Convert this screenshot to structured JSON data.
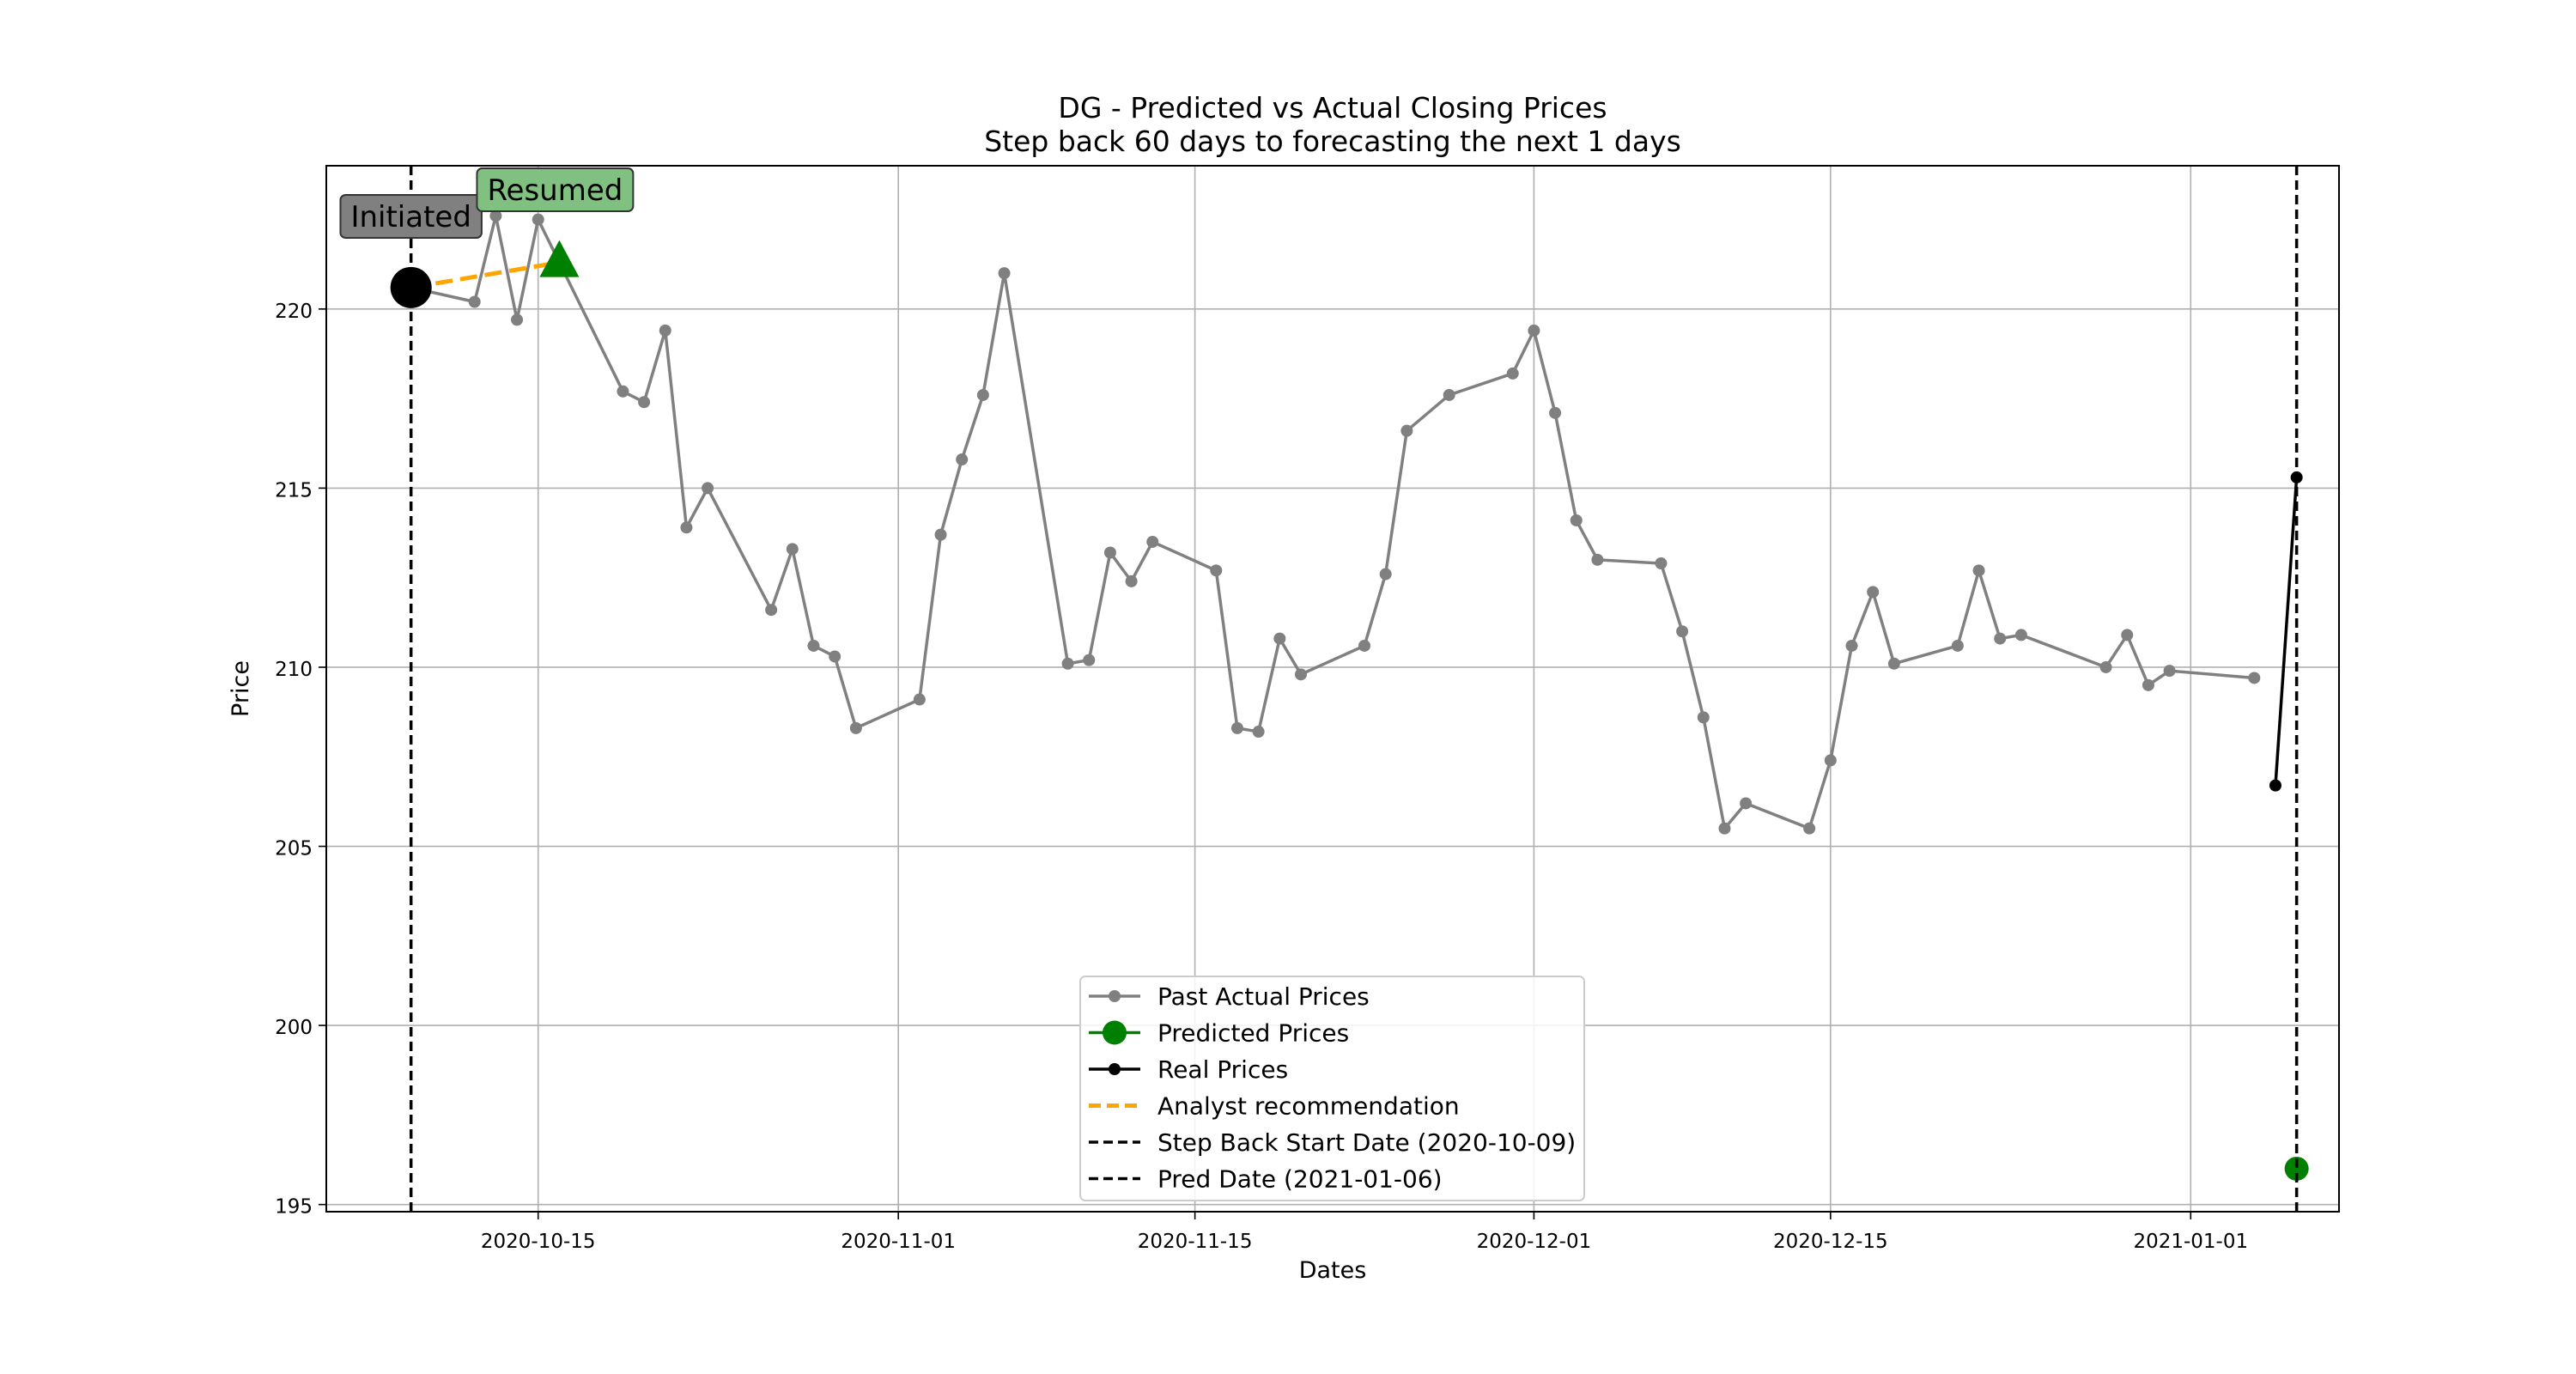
{
  "chart_data": {
    "type": "line",
    "title": "DG - Predicted vs Actual Closing Prices",
    "subtitle": "Step back 60 days to forecasting the next 1 days",
    "xlabel": "Dates",
    "ylabel": "Price",
    "xlim": [
      "2020-10-05",
      "2021-01-08"
    ],
    "ylim": [
      194.8,
      224.0
    ],
    "x_ticks": [
      "2020-10-15",
      "2020-11-01",
      "2020-11-15",
      "2020-12-01",
      "2020-12-15",
      "2021-01-01"
    ],
    "y_ticks": [
      195,
      200,
      205,
      210,
      215,
      220
    ],
    "grid": true,
    "legend_position": "lower center",
    "series": [
      {
        "name": "Past Actual Prices",
        "color": "#808080",
        "marker": "circle",
        "x": [
          "2020-10-09",
          "2020-10-12",
          "2020-10-13",
          "2020-10-14",
          "2020-10-15",
          "2020-10-16",
          "2020-10-19",
          "2020-10-20",
          "2020-10-21",
          "2020-10-22",
          "2020-10-23",
          "2020-10-26",
          "2020-10-27",
          "2020-10-28",
          "2020-10-29",
          "2020-10-30",
          "2020-11-02",
          "2020-11-03",
          "2020-11-04",
          "2020-11-05",
          "2020-11-06",
          "2020-11-09",
          "2020-11-10",
          "2020-11-11",
          "2020-11-12",
          "2020-11-13",
          "2020-11-16",
          "2020-11-17",
          "2020-11-18",
          "2020-11-19",
          "2020-11-20",
          "2020-11-23",
          "2020-11-24",
          "2020-11-25",
          "2020-11-27",
          "2020-11-30",
          "2020-12-01",
          "2020-12-02",
          "2020-12-03",
          "2020-12-04",
          "2020-12-07",
          "2020-12-08",
          "2020-12-09",
          "2020-12-10",
          "2020-12-11",
          "2020-12-14",
          "2020-12-15",
          "2020-12-16",
          "2020-12-17",
          "2020-12-18",
          "2020-12-21",
          "2020-12-22",
          "2020-12-23",
          "2020-12-24",
          "2020-12-28",
          "2020-12-29",
          "2020-12-30",
          "2020-12-31",
          "2021-01-04"
        ],
        "values": [
          220.6,
          220.2,
          222.6,
          219.7,
          222.5,
          221.3,
          217.7,
          217.4,
          219.4,
          213.9,
          215.0,
          211.6,
          213.3,
          210.6,
          210.3,
          208.3,
          209.1,
          213.7,
          215.8,
          217.6,
          221.0,
          210.1,
          210.2,
          213.2,
          212.4,
          213.5,
          212.7,
          208.3,
          208.2,
          210.8,
          209.8,
          210.6,
          212.6,
          216.6,
          217.6,
          218.2,
          219.4,
          217.1,
          214.1,
          213.0,
          212.9,
          211.0,
          208.6,
          205.5,
          206.2,
          205.5,
          207.4,
          210.6,
          212.1,
          210.1,
          210.6,
          212.7,
          210.8,
          210.9,
          210.0,
          210.9,
          209.5,
          209.9,
          209.7
        ]
      },
      {
        "name": "Predicted Prices",
        "color": "#008000",
        "marker": "large-circle",
        "x": [
          "2021-01-06"
        ],
        "values": [
          196.0
        ]
      },
      {
        "name": "Real Prices",
        "color": "#000000",
        "marker": "circle",
        "x": [
          "2021-01-05",
          "2021-01-06"
        ],
        "values": [
          206.7,
          215.3
        ]
      },
      {
        "name": "Analyst recommendation",
        "color": "#ffa500",
        "line_style": "dashed",
        "x": [
          "2020-10-09",
          "2020-10-16"
        ],
        "values": [
          220.6,
          221.3
        ]
      }
    ],
    "vertical_lines": [
      {
        "name": "Step Back Start Date (2020-10-09)",
        "x": "2020-10-09",
        "color": "#000000",
        "line_style": "dashed"
      },
      {
        "name": "Pred Date (2021-01-06)",
        "x": "2021-01-06",
        "color": "#000000",
        "line_style": "dashed"
      }
    ],
    "annotations": [
      {
        "text": "Initiated",
        "x": "2020-10-09",
        "y": 220.6,
        "marker": "black-circle",
        "box_color": "#808080"
      },
      {
        "text": "Resumed",
        "x": "2020-10-16",
        "y": 221.3,
        "marker": "green-triangle",
        "box_color": "#80c080"
      }
    ],
    "legend": [
      "Past Actual Prices",
      "Predicted Prices",
      "Real Prices",
      "Analyst recommendation",
      "Step Back Start Date (2020-10-09)",
      "Pred Date (2021-01-06)"
    ]
  }
}
